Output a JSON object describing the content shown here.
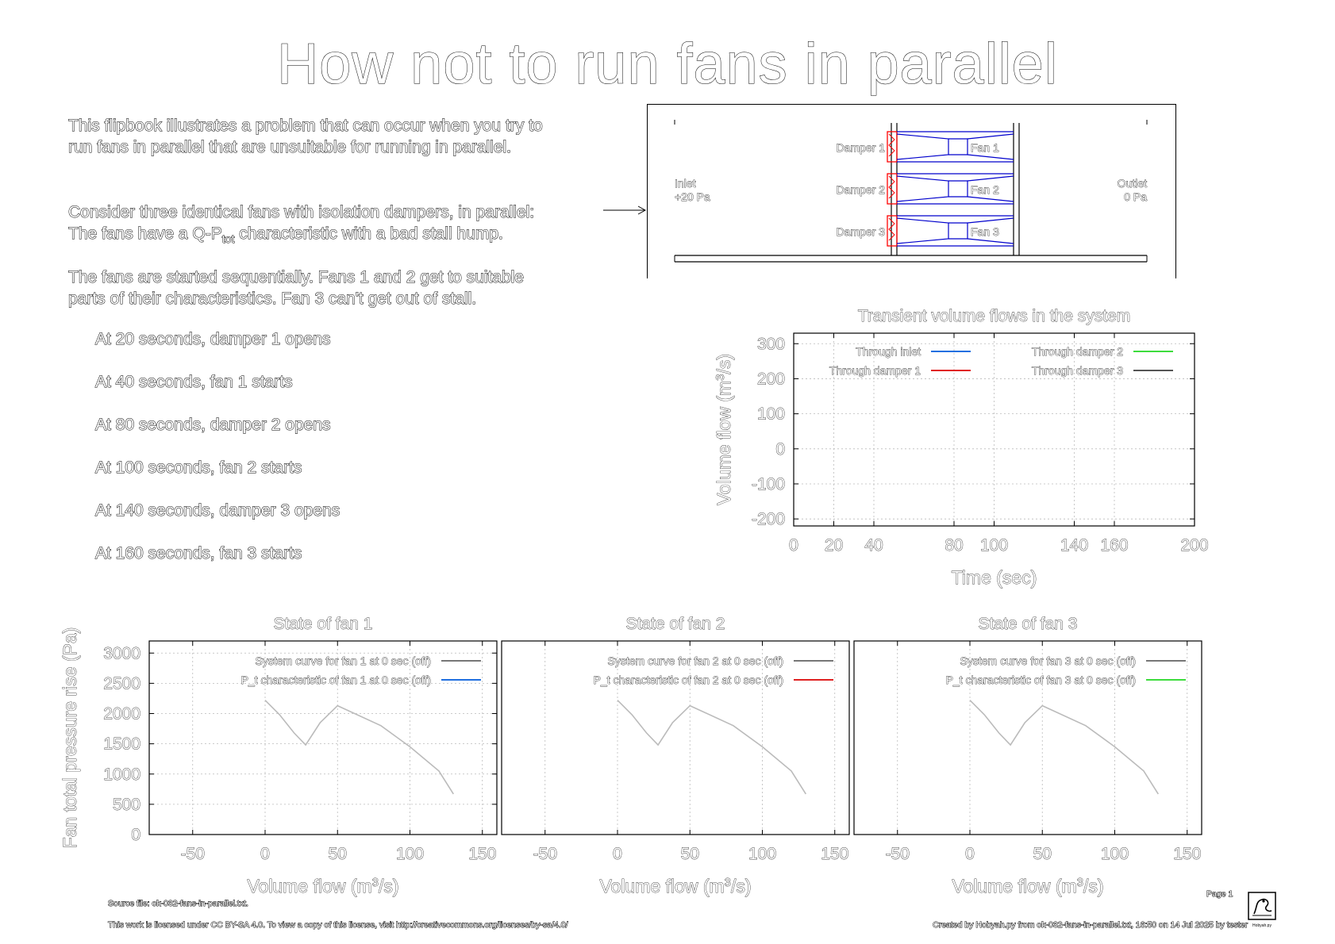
{
  "page": {
    "title": "How not to run fans in parallel",
    "intro": [
      "This flipbook illustrates a problem that can occur when you try to",
      "run fans in parallel that are unsuitable for running in parallel.",
      "Consider three identical fans with isolation dampers, in parallel:",
      "The fans have a Q-P",
      "tot",
      " characteristic with a bad stall hump.",
      "The fans are started sequentially.  Fans 1 and 2 get to suitable",
      "parts of their characteristics.  Fan 3 can't get out of stall."
    ],
    "events": [
      "At 20 seconds, damper 1 opens",
      "At 40 seconds, fan 1 starts",
      "At 80 seconds, damper 2 opens",
      "At 100 seconds, fan 2 starts",
      "At 140 seconds, damper 3 opens",
      "At 160 seconds, fan 3 starts"
    ]
  },
  "schematic": {
    "inlet_label": "Inlet",
    "inlet_pressure": "+20 Pa",
    "outlet_label": "Outlet",
    "outlet_pressure": "0 Pa",
    "dampers": [
      "Damper 1",
      "Damper 2",
      "Damper 3"
    ],
    "fans": [
      "Fan 1",
      "Fan 2",
      "Fan 3"
    ],
    "colors": {
      "duct": "#000000",
      "fan": "#0000cc",
      "damper": "#ff0000"
    }
  },
  "footer": {
    "source": "Source file: ok-032-fans-in-parallel.txt.",
    "license": "This work is licensed under CC BY-SA 4.0. To view a copy of this license, visit http://creativecommons.org/licenses/by-sa/4.0/",
    "page": "Page 1",
    "created": "Created by Hobyah.py from ok-032-fans-in-parallel.txt, 16:50 on 14 Jul 2025 by tester",
    "logo_caption": "Hobyah.py"
  },
  "chart_data": [
    {
      "type": "line",
      "title": "Transient volume flows in the system",
      "xlabel": "Time (sec)",
      "ylabel_main": "Volume flow (m",
      "ylabel_sup": "3",
      "ylabel_end": "/s)",
      "xlim": [
        0,
        200
      ],
      "ylim": [
        -220,
        330
      ],
      "xticks": [
        0,
        20,
        40,
        80,
        100,
        140,
        160,
        200
      ],
      "yticks": [
        300,
        200,
        100,
        0,
        -100,
        -200
      ],
      "grid": true,
      "legend": "top",
      "series": [
        {
          "name": "Through inlet",
          "color": "#1f6fe0",
          "x": [],
          "y": []
        },
        {
          "name": "Through damper 1",
          "color": "#e02020",
          "x": [],
          "y": []
        },
        {
          "name": "Through damper 2",
          "color": "#3ddc3d",
          "x": [],
          "y": []
        },
        {
          "name": "Through damper 3",
          "color": "#555555",
          "x": [],
          "y": []
        }
      ]
    },
    {
      "type": "line",
      "title": "State of fan 1",
      "xlabel_main": "Volume flow (m",
      "xlabel_sup": "3",
      "xlabel_end": "/s)",
      "ylabel": "Fan total pressure rise (Pa)",
      "xlim": [
        -80,
        160
      ],
      "ylim": [
        0,
        3200
      ],
      "xticks": [
        -50,
        0,
        50,
        100,
        150
      ],
      "yticks": [
        3000,
        2500,
        2000,
        1500,
        1000,
        500,
        0
      ],
      "grid": true,
      "legend": "top-right",
      "series": [
        {
          "name": "System curve for fan 1 at 0 sec (off)",
          "color": "#777777",
          "x": [],
          "y": []
        },
        {
          "name": "P_t characteristic of fan 1 at 0 sec (off)",
          "color": "#1f6fe0",
          "x": [],
          "y": []
        },
        {
          "name": "",
          "color": "#bbbbbb",
          "x": [
            0,
            10,
            20,
            28,
            38,
            50,
            80,
            100,
            120,
            130
          ],
          "y": [
            2220,
            1980,
            1680,
            1480,
            1850,
            2130,
            1800,
            1450,
            1050,
            670
          ]
        }
      ]
    },
    {
      "type": "line",
      "title": "State of fan 2",
      "xlabel_main": "Volume flow (m",
      "xlabel_sup": "3",
      "xlabel_end": "/s)",
      "xlim": [
        -80,
        160
      ],
      "ylim": [
        0,
        3200
      ],
      "xticks": [
        -50,
        0,
        50,
        100,
        150
      ],
      "grid": true,
      "legend": "top-right",
      "series": [
        {
          "name": "System curve for fan 2 at 0 sec (off)",
          "color": "#777777",
          "x": [],
          "y": []
        },
        {
          "name": "P_t characteristic of fan 2 at 0 sec (off)",
          "color": "#e02020",
          "x": [],
          "y": []
        },
        {
          "name": "",
          "color": "#bbbbbb",
          "x": [
            0,
            10,
            20,
            28,
            38,
            50,
            80,
            100,
            120,
            130
          ],
          "y": [
            2220,
            1980,
            1680,
            1480,
            1850,
            2130,
            1800,
            1450,
            1050,
            670
          ]
        }
      ]
    },
    {
      "type": "line",
      "title": "State of fan 3",
      "xlabel_main": "Volume flow (m",
      "xlabel_sup": "3",
      "xlabel_end": "/s)",
      "xlim": [
        -80,
        160
      ],
      "ylim": [
        0,
        3200
      ],
      "xticks": [
        -50,
        0,
        50,
        100,
        150
      ],
      "grid": true,
      "legend": "top-right",
      "series": [
        {
          "name": "System curve for fan 3 at 0 sec (off)",
          "color": "#777777",
          "x": [],
          "y": []
        },
        {
          "name": "P_t characteristic of fan 3 at 0 sec (off)",
          "color": "#3ddc3d",
          "x": [],
          "y": []
        },
        {
          "name": "",
          "color": "#bbbbbb",
          "x": [
            0,
            10,
            20,
            28,
            38,
            50,
            80,
            100,
            120,
            130
          ],
          "y": [
            2220,
            1980,
            1680,
            1480,
            1850,
            2130,
            1800,
            1450,
            1050,
            670
          ]
        }
      ]
    }
  ]
}
